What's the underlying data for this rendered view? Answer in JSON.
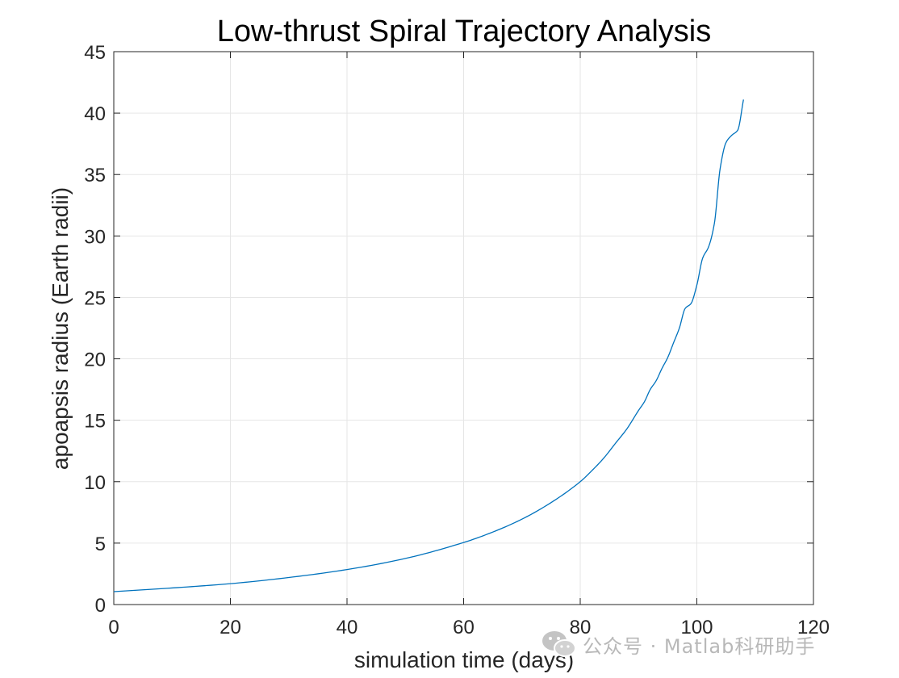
{
  "chart_data": {
    "type": "line",
    "title": "Low-thrust Spiral Trajectory Analysis",
    "xlabel": "simulation time (days)",
    "ylabel": "apoapsis radius (Earth radii)",
    "xlim": [
      0,
      120
    ],
    "ylim": [
      0,
      45
    ],
    "xticks": [
      "0",
      "20",
      "40",
      "60",
      "80",
      "100",
      "120"
    ],
    "yticks": [
      "0",
      "5",
      "10",
      "15",
      "20",
      "25",
      "30",
      "35",
      "40",
      "45"
    ],
    "grid": true,
    "line_color": "#0072BD",
    "series": [
      {
        "name": "apoapsis radius",
        "x": [
          0,
          10,
          20,
          30,
          40,
          50,
          60,
          65,
          70,
          75,
          80,
          82,
          84,
          86,
          88,
          90,
          91,
          92,
          93,
          94,
          95,
          96,
          97,
          98,
          99,
          100,
          101,
          102,
          103,
          104,
          105,
          106,
          107,
          108
        ],
        "y": [
          1.05,
          1.35,
          1.7,
          2.2,
          2.85,
          3.75,
          5.05,
          5.9,
          6.95,
          8.3,
          10.0,
          10.9,
          11.9,
          13.1,
          14.3,
          15.8,
          16.5,
          17.5,
          18.2,
          19.2,
          20.1,
          21.3,
          22.5,
          24.1,
          24.5,
          26.0,
          28.2,
          29.1,
          31.0,
          35.5,
          37.6,
          38.2,
          38.6,
          41.1
        ]
      }
    ]
  },
  "watermark": {
    "icon": "wechat-icon",
    "text": "公众号 · Matlab科研助手"
  }
}
